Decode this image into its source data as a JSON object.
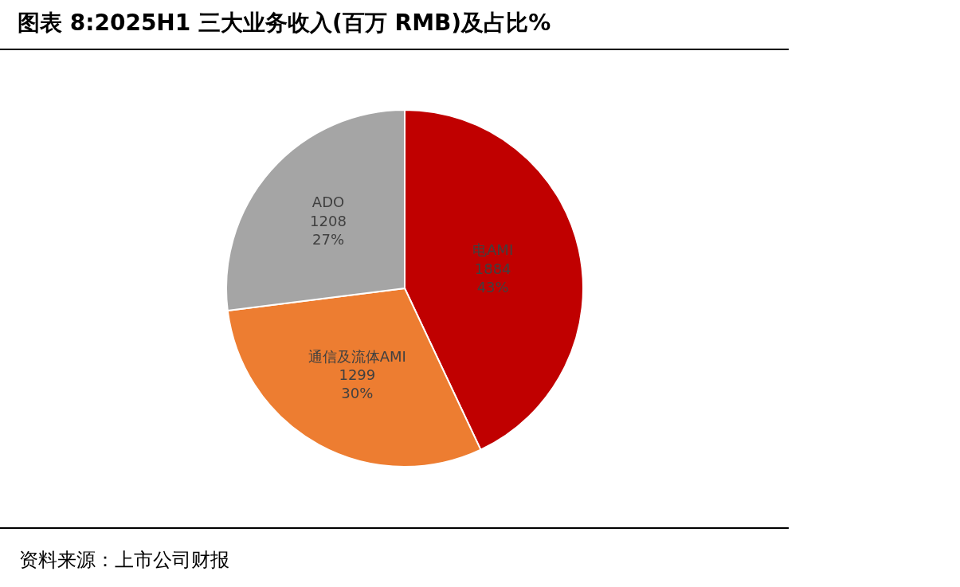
{
  "chart_data": {
    "type": "pie",
    "title": "图表 8:2025H1 三大业务收入(百万 RMB)及占比%",
    "categories": [
      "电AMI",
      "通信及流体AMI",
      "ADO"
    ],
    "values": [
      43,
      30,
      27
    ],
    "value_labels": [
      "1884\n43%",
      "1299\n30%",
      "1208\n27%"
    ],
    "colors": [
      "#c00000",
      "#ed7d31",
      "#a5a5a5"
    ],
    "legend": false,
    "annotations": [
      "资料来源：上市公司财报"
    ]
  }
}
